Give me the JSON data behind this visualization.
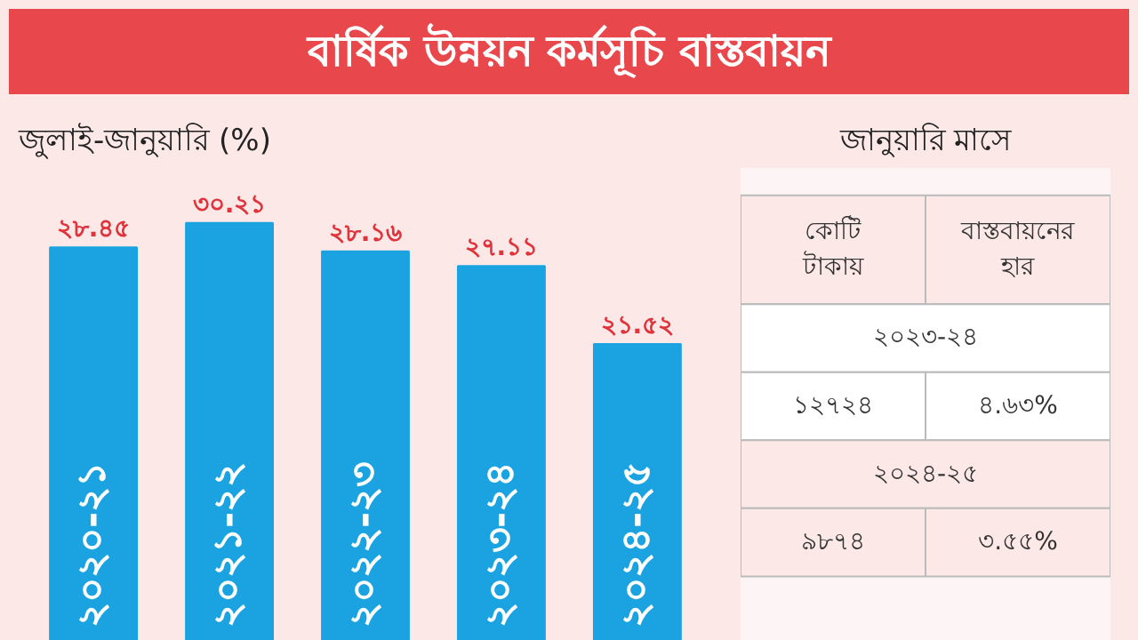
{
  "chart_data": [
    {
      "type": "bar",
      "title": "বার্ষিক উন্নয়ন কর্মসূচি বাস্তবায়ন",
      "subtitle": "জুলাই-জানুয়ারি (%)",
      "categories": [
        "২০২০-২১",
        "২০২১-২২",
        "২০২২-২৩",
        "২০২৩-২৪",
        "২০২৪-২৫"
      ],
      "values": [
        28.45,
        30.21,
        28.16,
        27.11,
        21.52
      ],
      "value_labels": [
        "২৮.৪৫",
        "৩০.২১",
        "২৮.১৬",
        "২৭.১১",
        "২১.৫২"
      ],
      "color": "#1aa3e0"
    },
    {
      "type": "other",
      "title": "জানুয়ারি মাসে",
      "annotations": [
        "কোটি\nটাকায়",
        "বাস্তবায়নের\nহার",
        "২০২৩-২৪",
        "১২৭২৪",
        "৪.৬৩%",
        "২০২৪-২৫",
        "৯৮৭৪",
        "৩.৫৫%"
      ]
    }
  ]
}
